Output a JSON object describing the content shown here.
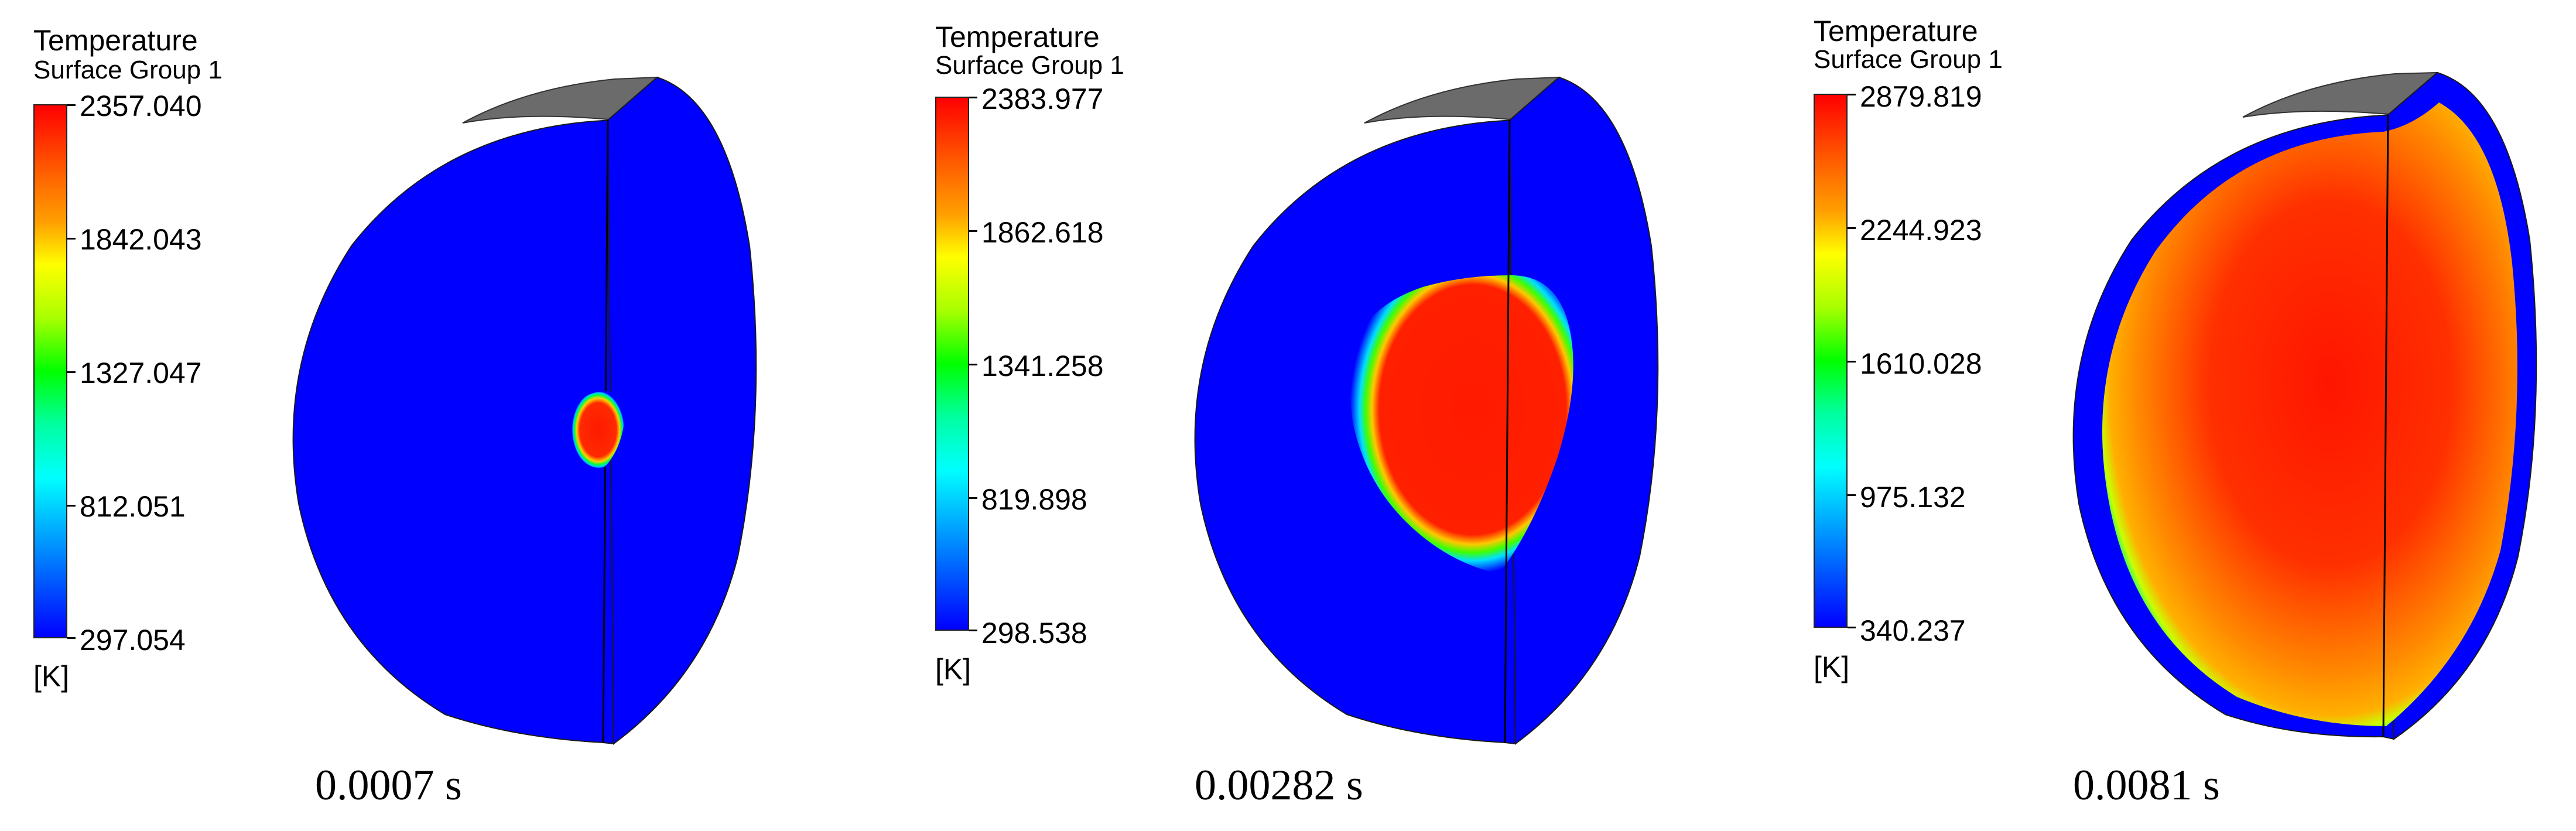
{
  "panels": [
    {
      "legend_title": "Temperature",
      "legend_subtitle": "Surface Group 1",
      "ticks": [
        "2357.040",
        "1842.043",
        "1327.047",
        "812.051",
        "297.054"
      ],
      "unit": "[K]",
      "caption": "0.0007 s"
    },
    {
      "legend_title": "Temperature",
      "legend_subtitle": "Surface Group 1",
      "ticks": [
        "2383.977",
        "1862.618",
        "1341.258",
        "819.898",
        "298.538"
      ],
      "unit": "[K]",
      "caption": "0.00282 s"
    },
    {
      "legend_title": "Temperature",
      "legend_subtitle": "Surface Group 1",
      "ticks": [
        "2879.819",
        "2244.923",
        "1610.028",
        "975.132",
        "340.237"
      ],
      "unit": "[K]",
      "caption": "0.0081 s"
    }
  ],
  "colors": {
    "cold": "#0000ff",
    "hot": "#ff0000",
    "cap": "#6e6e6e"
  }
}
